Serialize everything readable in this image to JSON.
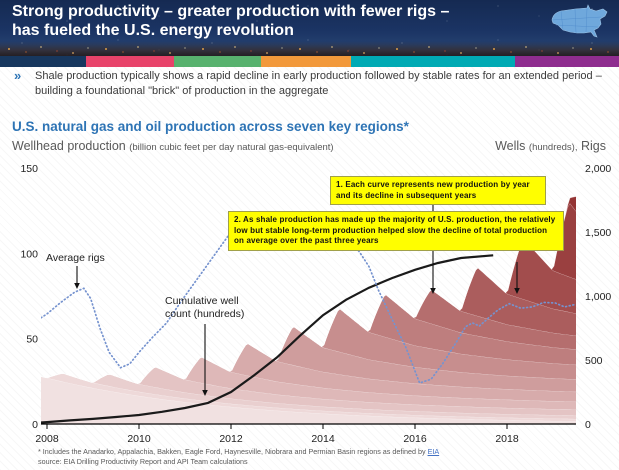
{
  "header": {
    "title_line1": "Strong productivity – greater production with fewer rigs –",
    "title_line2": "has fueled the U.S. energy revolution"
  },
  "accent_stripe": {
    "colors": [
      "#17375e",
      "#e8436a",
      "#58b26e",
      "#f2993b",
      "#00aab4",
      "#8f2d8f"
    ],
    "widths": [
      86,
      88,
      87,
      90,
      164,
      104
    ]
  },
  "bullet": {
    "marker": "»",
    "text": "Shale production typically shows a rapid decline in early production followed by stable rates for an extended period – building a foundational \"brick\" of production in the aggregate"
  },
  "chart_header": {
    "title": "U.S. natural gas and oil production across seven key regions*",
    "left_axis_title": "Wellhead production",
    "left_axis_units": "(billion cubic feet per day natural gas-equivalent)",
    "right_axis_wells": "Wells",
    "right_axis_units": "(hundreds),",
    "right_axis_rigs": "Rigs"
  },
  "callouts": [
    {
      "text": "1. Each curve represents new production by year and its decline in subsequent years"
    },
    {
      "text": "2. As shale production has made up the majority of U.S. production, the relatively low but stable long-term production helped slow the decline of total production on average over the past three years"
    }
  ],
  "annotations": {
    "average_rigs": "Average rigs",
    "cum_well_line1": "Cumulative well",
    "cum_well_line2": "count (hundreds)"
  },
  "footnote": {
    "line1_pre": "* Includes the Anadarko, Appalachia, Bakken, Eagle Ford, Haynesville, Niobrara and Permian Basin regions as defined by ",
    "link": "EIA",
    "line2": "source:  EIA Drilling Productivity Report and API Team calculations"
  },
  "chart_data": {
    "type": "area",
    "title": "U.S. natural gas and oil production across seven key regions",
    "x_axis": {
      "ticks": [
        2008,
        2010,
        2012,
        2014,
        2016,
        2018
      ],
      "range": [
        2007.87,
        2019.5
      ]
    },
    "left_axis": {
      "label": "Wellhead production (billion cubic feet per day natural gas-equivalent)",
      "ticks": [
        0,
        50,
        100,
        150
      ],
      "tick_labels": [
        "0",
        "50",
        "100",
        "150"
      ],
      "range": [
        0,
        150
      ]
    },
    "right_axis": {
      "label": "Wells (hundreds), Rigs",
      "ticks": [
        0,
        500,
        1000,
        1500,
        2000
      ],
      "tick_labels": [
        "0",
        "500",
        "1,000",
        "1,500",
        "2,000"
      ],
      "range": [
        0,
        2000
      ]
    },
    "total_production_envelope": [
      [
        2007.87,
        30
      ],
      [
        2008,
        30.5
      ],
      [
        2009,
        27.5
      ],
      [
        2010,
        31
      ],
      [
        2011,
        36
      ],
      [
        2012,
        43
      ],
      [
        2013,
        52
      ],
      [
        2014,
        63
      ],
      [
        2015,
        72.5
      ],
      [
        2016,
        79
      ],
      [
        2016.6,
        77.5
      ],
      [
        2017,
        84
      ],
      [
        2018,
        101
      ],
      [
        2019,
        117
      ],
      [
        2019.5,
        131
      ]
    ],
    "vintage_years": [
      2008,
      2009,
      2010,
      2011,
      2012,
      2013,
      2014,
      2015,
      2016,
      2017,
      2018,
      2019,
      2019.3
    ],
    "decline_profile": [
      1,
      0.52,
      0.41,
      0.35,
      0.31,
      0.285,
      0.27,
      0.26,
      0.25,
      0.243,
      0.238,
      0.234,
      0.23
    ],
    "legacy": {
      "start_value": 27,
      "annual_decay": 0.78
    },
    "cumulative_well_count_hundreds": [
      [
        2007.87,
        12
      ],
      [
        2008,
        15
      ],
      [
        2008.5,
        28
      ],
      [
        2009,
        40
      ],
      [
        2009.5,
        55
      ],
      [
        2010,
        70
      ],
      [
        2010.5,
        95
      ],
      [
        2011,
        125
      ],
      [
        2011.5,
        165
      ],
      [
        2012,
        250
      ],
      [
        2012.5,
        380
      ],
      [
        2013,
        520
      ],
      [
        2013.5,
        690
      ],
      [
        2014,
        850
      ],
      [
        2014.5,
        970
      ],
      [
        2015,
        1065
      ],
      [
        2015.5,
        1140
      ],
      [
        2016,
        1205
      ],
      [
        2016.5,
        1258
      ],
      [
        2017,
        1297
      ],
      [
        2017.7,
        1318
      ]
    ],
    "average_rigs": [
      [
        2007.87,
        830
      ],
      [
        2008,
        860
      ],
      [
        2008.3,
        950
      ],
      [
        2008.6,
        1030
      ],
      [
        2008.8,
        1060
      ],
      [
        2008.95,
        980
      ],
      [
        2009.15,
        750
      ],
      [
        2009.35,
        560
      ],
      [
        2009.6,
        440
      ],
      [
        2009.8,
        470
      ],
      [
        2010,
        560
      ],
      [
        2010.3,
        680
      ],
      [
        2010.6,
        790
      ],
      [
        2010.9,
        950
      ],
      [
        2011.2,
        1100
      ],
      [
        2011.5,
        1250
      ],
      [
        2011.8,
        1400
      ],
      [
        2012.1,
        1550
      ],
      [
        2012.4,
        1600
      ],
      [
        2012.7,
        1560
      ],
      [
        2013,
        1520
      ],
      [
        2013.4,
        1500
      ],
      [
        2013.8,
        1530
      ],
      [
        2014.2,
        1550
      ],
      [
        2014.5,
        1480
      ],
      [
        2014.8,
        1340
      ],
      [
        2015,
        1230
      ],
      [
        2015.2,
        1050
      ],
      [
        2015.5,
        820
      ],
      [
        2015.8,
        600
      ],
      [
        2016.1,
        320
      ],
      [
        2016.35,
        350
      ],
      [
        2016.6,
        470
      ],
      [
        2016.9,
        640
      ],
      [
        2017.1,
        760
      ],
      [
        2017.25,
        790
      ],
      [
        2017.4,
        765
      ],
      [
        2017.6,
        830
      ],
      [
        2017.8,
        890
      ],
      [
        2018.05,
        940
      ],
      [
        2018.3,
        905
      ],
      [
        2018.55,
        915
      ],
      [
        2018.8,
        950
      ],
      [
        2019.05,
        945
      ],
      [
        2019.25,
        915
      ],
      [
        2019.5,
        935
      ]
    ],
    "colors": {
      "layers": [
        "#f1e1e1",
        "#eed9d9",
        "#e9cfcf",
        "#e4c4c4",
        "#deb8b8",
        "#d7abab",
        "#cf9d9d",
        "#c78e8e",
        "#be7e7e",
        "#b56e6e",
        "#ab5d5d",
        "#a24d4d",
        "#9a4040",
        "#943434"
      ],
      "well_line": "#1a1a1a",
      "rigs_line": "#7693cf",
      "layer_edge": "rgba(255,255,255,0.55)"
    },
    "legend_position": "annotations-in-plot",
    "grid": false
  }
}
